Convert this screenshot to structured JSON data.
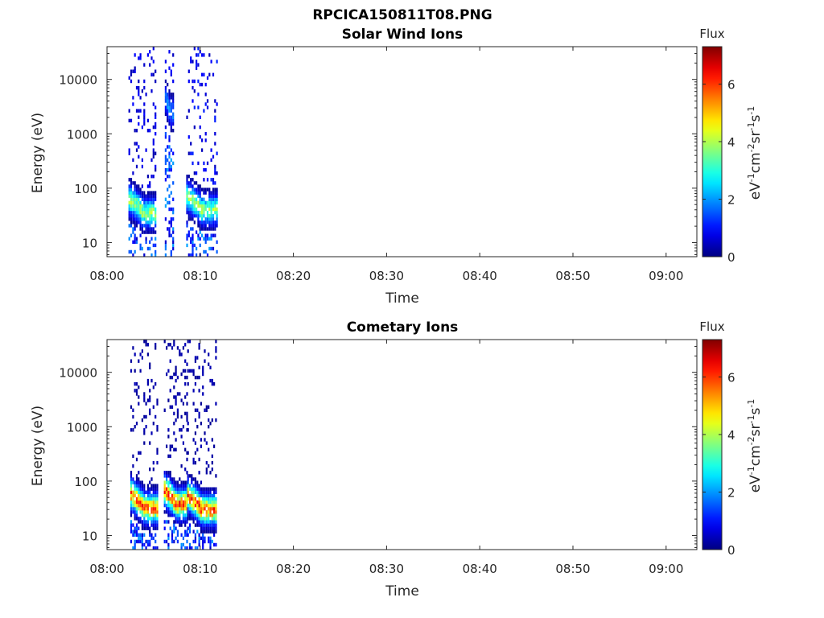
{
  "figure_title": "RPCICA150811T08.PNG",
  "chart_data": [
    {
      "type": "heatmap",
      "title": "Solar Wind Ions",
      "xlabel": "Time",
      "ylabel": "Energy (eV)",
      "x_ticks": [
        "08:00",
        "08:10",
        "08:20",
        "08:30",
        "08:40",
        "08:50",
        "09:00"
      ],
      "x_range_minutes": [
        0,
        63.3
      ],
      "y_scale": "log",
      "y_ticks": [
        "10",
        "100",
        "1000",
        "10000"
      ],
      "y_range": [
        5.5,
        40000
      ],
      "colorbar": {
        "title": "Flux",
        "label": "eV-1cm-2sr-1s-1",
        "range": [
          0,
          7.3
        ],
        "ticks": [
          "0",
          "2",
          "4",
          "6"
        ],
        "colormap": "jet"
      },
      "bursts": [
        {
          "start_min": 2.3,
          "end_min": 5.3,
          "core_energy_eV": 35,
          "peak_flux": 4.6,
          "sparse_high_energy_flux": 1.0
        },
        {
          "start_min": 6.2,
          "end_min": 7.2,
          "core_energy_eV": 2500,
          "peak_flux": 2.3,
          "sparse_high_energy_flux": 1.0
        },
        {
          "start_min": 8.5,
          "end_min": 11.7,
          "core_energy_eV": 40,
          "peak_flux": 4.4,
          "sparse_high_energy_flux": 1.2
        }
      ]
    },
    {
      "type": "heatmap",
      "title": "Cometary Ions",
      "xlabel": "Time",
      "ylabel": "Energy (eV)",
      "x_ticks": [
        "08:00",
        "08:10",
        "08:20",
        "08:30",
        "08:40",
        "08:50",
        "09:00"
      ],
      "x_range_minutes": [
        0,
        63.3
      ],
      "y_scale": "log",
      "y_ticks": [
        "10",
        "100",
        "1000",
        "10000"
      ],
      "y_range": [
        5.5,
        40000
      ],
      "colorbar": {
        "title": "Flux",
        "label": "eV-1cm-2sr-1s-1",
        "range": [
          0,
          7.3
        ],
        "ticks": [
          "0",
          "2",
          "4",
          "6"
        ],
        "colormap": "jet"
      },
      "bursts": [
        {
          "start_min": 2.5,
          "end_min": 5.4,
          "core_energy_eV": 32,
          "peak_flux": 6.6,
          "sparse_high_energy_flux": 0.4
        },
        {
          "start_min": 6.1,
          "end_min": 8.6,
          "core_energy_eV": 38,
          "peak_flux": 6.9,
          "sparse_high_energy_flux": 0.4
        },
        {
          "start_min": 8.6,
          "end_min": 11.6,
          "core_energy_eV": 30,
          "peak_flux": 6.8,
          "sparse_high_energy_flux": 0.4
        }
      ]
    }
  ]
}
